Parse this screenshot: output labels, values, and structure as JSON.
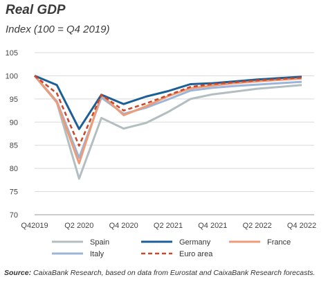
{
  "header": {
    "title": "Real GDP",
    "subtitle": "Index (100 = Q4 2019)"
  },
  "source": {
    "label": "Source:",
    "text": "CaixaBank Research, based on data from Eurostat and CaixaBank Research forecasts."
  },
  "chart_data": {
    "type": "line",
    "title": "Real GDP",
    "subtitle": "Index (100 = Q4 2019)",
    "xlabel": "",
    "ylabel": "",
    "ylim": [
      70,
      105
    ],
    "yticks": [
      70,
      75,
      80,
      85,
      90,
      95,
      100,
      105
    ],
    "x": [
      "Q4 2019",
      "Q1 2020",
      "Q2 2020",
      "Q3 2020",
      "Q4 2020",
      "Q1 2021",
      "Q2 2021",
      "Q3 2021",
      "Q4 2021",
      "Q1 2022",
      "Q2 2022",
      "Q3 2022",
      "Q4 2022"
    ],
    "xtick_labels": [
      "Q42019",
      "",
      "Q2 2020",
      "",
      "Q4 2020",
      "",
      "Q2 2021",
      "",
      "Q4 2021",
      "",
      "Q2 2022",
      "",
      "Q4 2022"
    ],
    "grid": "horizontal",
    "legend_position": "bottom",
    "series": [
      {
        "name": "Spain",
        "color": "#b3bec0",
        "dash": false,
        "values": [
          100,
          94.2,
          77.8,
          90.9,
          88.6,
          89.8,
          92.2,
          95.0,
          96.0,
          96.6,
          97.2,
          97.6,
          98.0
        ]
      },
      {
        "name": "Germany",
        "color": "#1c5f96",
        "dash": false,
        "values": [
          100,
          98.0,
          88.5,
          95.9,
          93.9,
          95.5,
          96.7,
          98.2,
          98.4,
          98.8,
          99.2,
          99.5,
          99.8
        ]
      },
      {
        "name": "France",
        "color": "#ee9b78",
        "dash": false,
        "values": [
          100,
          94.3,
          81.1,
          95.9,
          91.5,
          93.4,
          95.6,
          97.3,
          97.9,
          98.4,
          98.8,
          99.1,
          99.4
        ]
      },
      {
        "name": "Italy",
        "color": "#9bb4d8",
        "dash": false,
        "values": [
          100,
          94.5,
          82.3,
          95.3,
          91.8,
          93.1,
          94.9,
          96.8,
          97.4,
          97.8,
          98.1,
          98.4,
          98.7
        ]
      },
      {
        "name": "Euro area",
        "color": "#c94a2b",
        "dash": true,
        "values": [
          100,
          96.2,
          84.9,
          95.9,
          92.5,
          94.0,
          95.8,
          97.6,
          98.2,
          98.6,
          99.0,
          99.3,
          99.6
        ]
      }
    ]
  }
}
